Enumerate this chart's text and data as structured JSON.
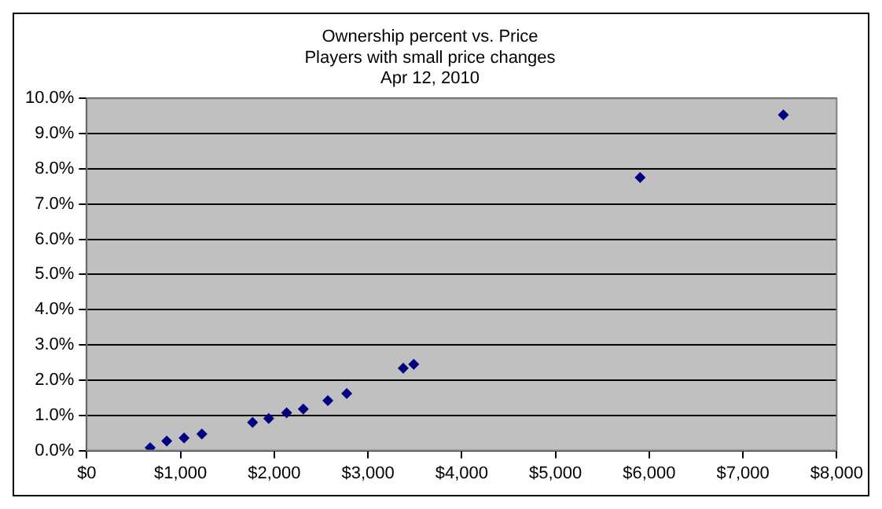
{
  "chart_data": {
    "type": "scatter",
    "title": "Ownership percent vs. Price",
    "subtitle": "Players with small price changes\nApr 12, 2010",
    "x": [
      676,
      853,
      1038,
      1228,
      1769,
      1941,
      2132,
      2310,
      2572,
      2773,
      3376,
      3488,
      5903,
      7431
    ],
    "series": [
      {
        "color": "#000080",
        "values": [
          0.08,
          0.27,
          0.36,
          0.47,
          0.8,
          0.91,
          1.07,
          1.18,
          1.42,
          1.62,
          2.34,
          2.45,
          7.75,
          9.53
        ]
      }
    ],
    "marker": "diamond",
    "grid": "y",
    "legend": false,
    "xlim": [
      0,
      8000
    ],
    "xticks": [
      {
        "value": 0,
        "label": "$0"
      },
      {
        "value": 1000,
        "label": "$1,000"
      },
      {
        "value": 2000,
        "label": "$2,000"
      },
      {
        "value": 3000,
        "label": "$3,000"
      },
      {
        "value": 4000,
        "label": "$4,000"
      },
      {
        "value": 5000,
        "label": "$5,000"
      },
      {
        "value": 6000,
        "label": "$6,000"
      },
      {
        "value": 7000,
        "label": "$7,000"
      },
      {
        "value": 8000,
        "label": "$8,000"
      }
    ],
    "ylim": [
      0,
      10
    ],
    "yticks": [
      {
        "value": 0,
        "label": "0.0%"
      },
      {
        "value": 1,
        "label": "1.0%"
      },
      {
        "value": 2,
        "label": "2.0%"
      },
      {
        "value": 3,
        "label": "3.0%"
      },
      {
        "value": 4,
        "label": "4.0%"
      },
      {
        "value": 5,
        "label": "5.0%"
      },
      {
        "value": 6,
        "label": "6.0%"
      },
      {
        "value": 7,
        "label": "7.0%"
      },
      {
        "value": 8,
        "label": "8.0%"
      },
      {
        "value": 9,
        "label": "9.0%"
      },
      {
        "value": 10,
        "label": "10.0%"
      }
    ]
  }
}
